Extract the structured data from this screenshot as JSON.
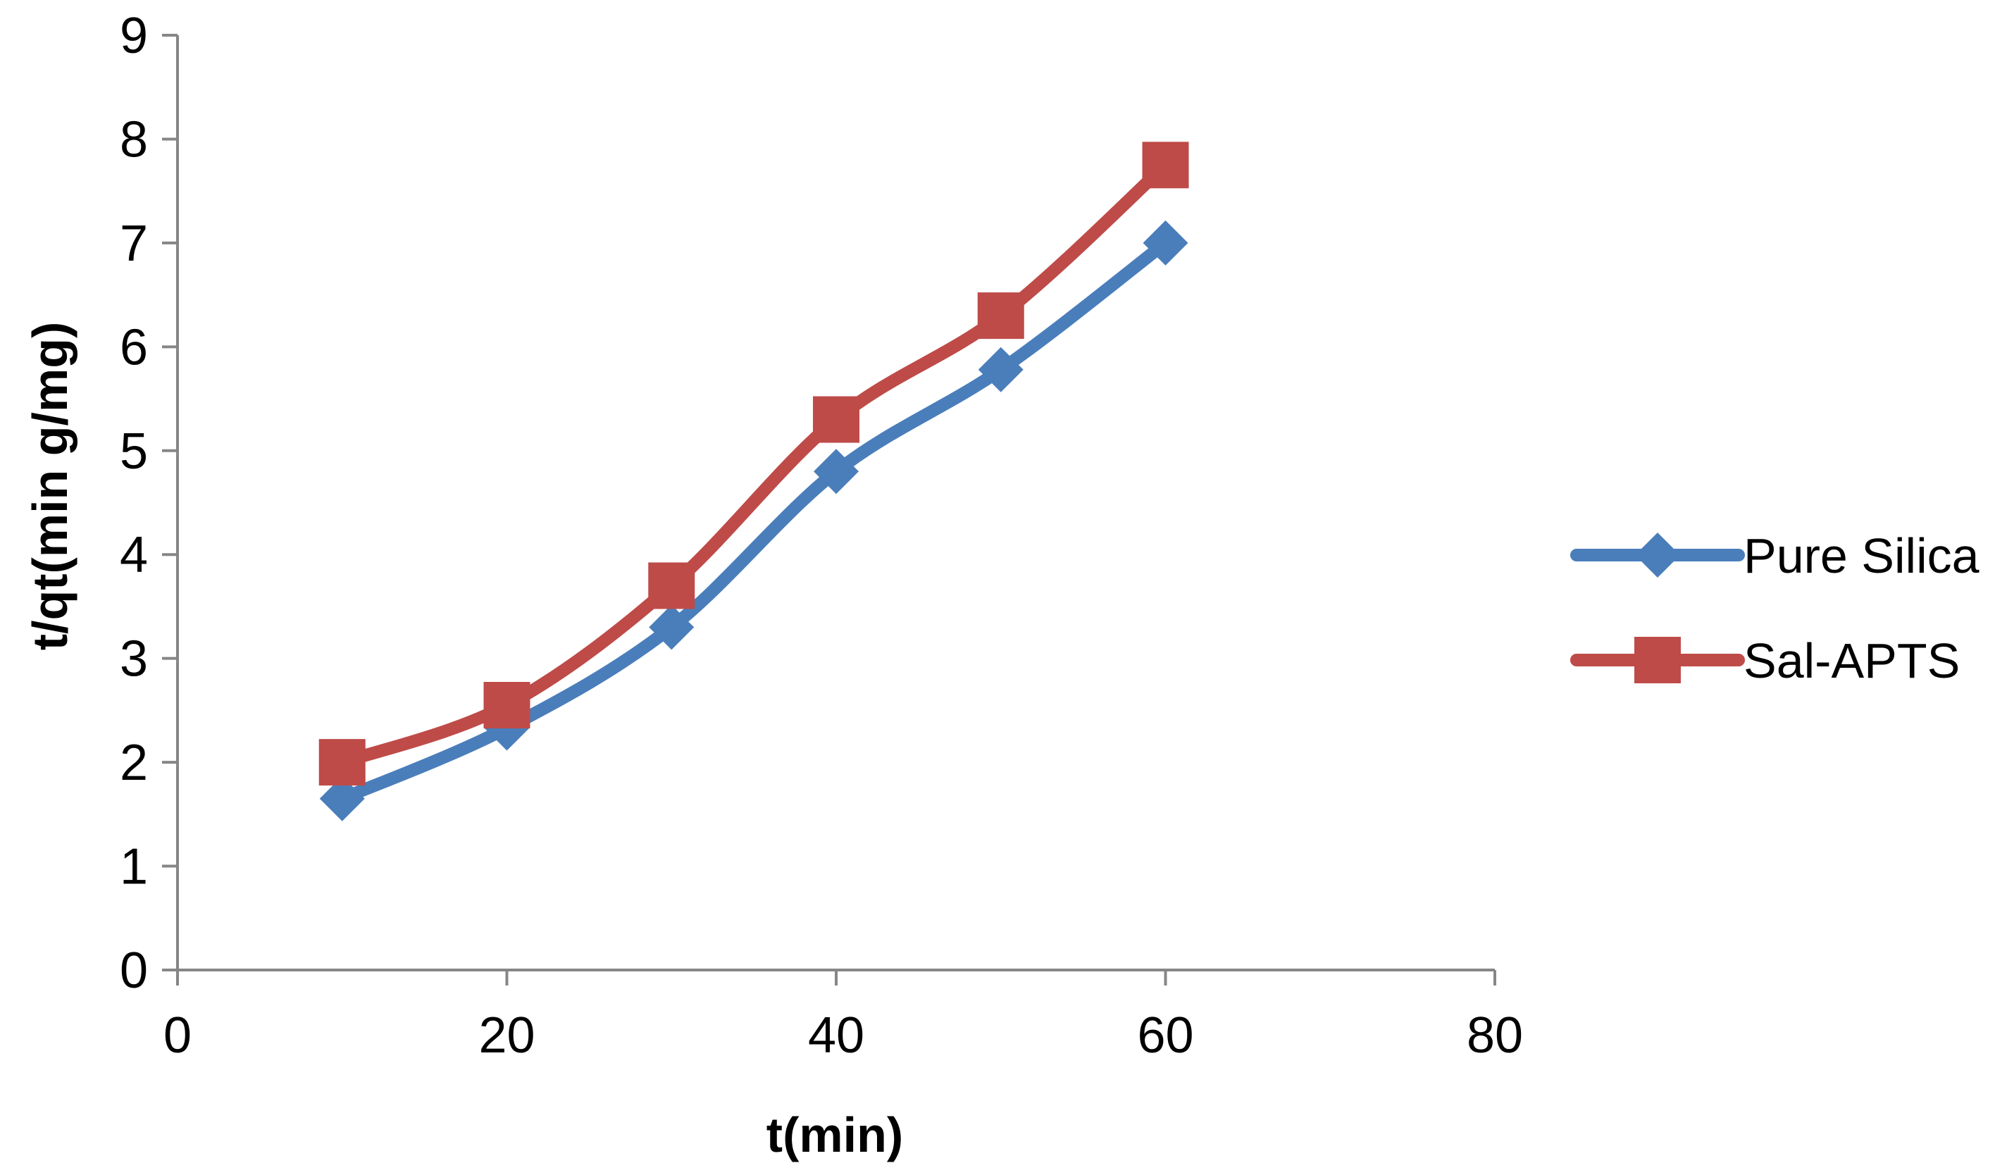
{
  "chart_data": {
    "type": "line",
    "title": "",
    "xlabel": "t(min)",
    "ylabel": "t/qt(min g/mg)",
    "xlim": [
      0,
      80
    ],
    "ylim": [
      0,
      9
    ],
    "xticks": [
      0,
      20,
      40,
      60,
      80
    ],
    "yticks": [
      0,
      1,
      2,
      3,
      4,
      5,
      6,
      7,
      8,
      9
    ],
    "grid": false,
    "legend_position": "right",
    "series": [
      {
        "name": "Pure Silica",
        "color": "#4a7ebb",
        "marker": "diamond",
        "x": [
          10,
          20,
          30,
          40,
          50,
          60
        ],
        "y": [
          1.65,
          2.33,
          3.3,
          4.8,
          5.78,
          7.0
        ]
      },
      {
        "name": "Sal-APTS",
        "color": "#be4b48",
        "marker": "square",
        "x": [
          10,
          20,
          30,
          40,
          50,
          60
        ],
        "y": [
          2.0,
          2.55,
          3.7,
          5.3,
          6.3,
          7.75
        ]
      }
    ]
  }
}
